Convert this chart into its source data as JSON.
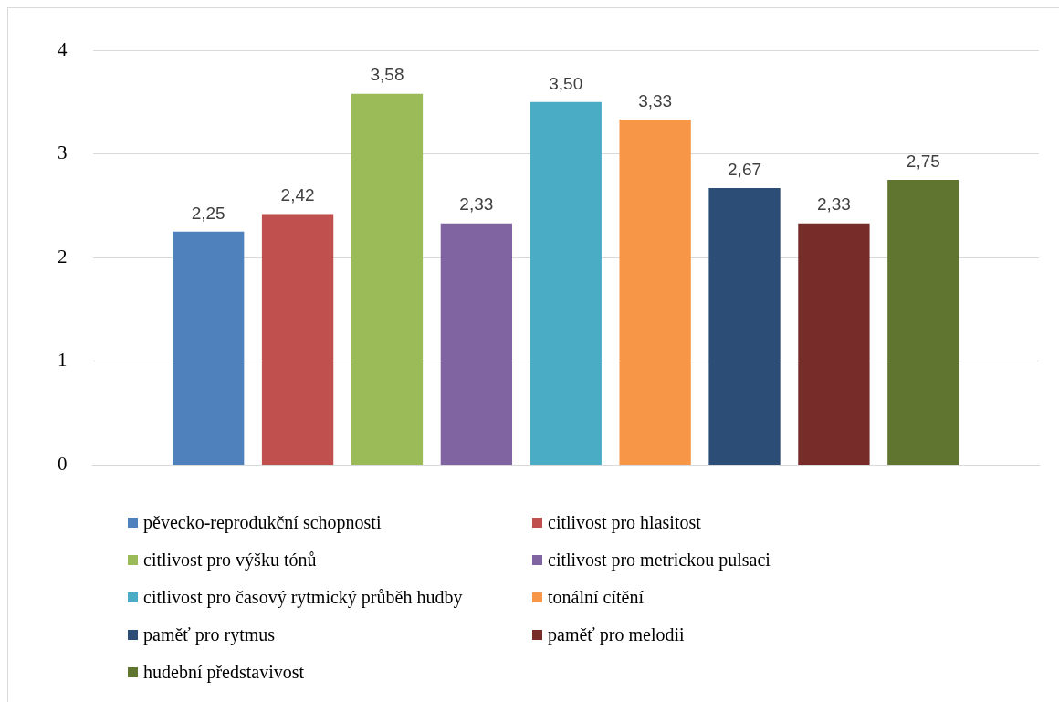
{
  "chart_data": {
    "type": "bar",
    "categories": [
      null
    ],
    "ylim": [
      0,
      4
    ],
    "yticks": [
      0,
      1,
      2,
      3,
      4
    ],
    "grid": "y",
    "legend": "bottom",
    "series": [
      {
        "name": "pěvecko-reprodukční schopnosti",
        "color": "#4f81bd",
        "values": [
          2.25
        ],
        "value_labels": [
          "2,25"
        ]
      },
      {
        "name": "citlivost pro hlasitost",
        "color": "#c0504d",
        "values": [
          2.42
        ],
        "value_labels": [
          "2,42"
        ]
      },
      {
        "name": "citlivost pro výšku tónů",
        "color": "#9bbb59",
        "values": [
          3.58
        ],
        "value_labels": [
          "3,58"
        ]
      },
      {
        "name": "citlivost pro metrickou pulsaci",
        "color": "#8064a2",
        "values": [
          2.33
        ],
        "value_labels": [
          "2,33"
        ]
      },
      {
        "name": "citlivost pro časový rytmický průběh hudby",
        "color": "#4bacc6",
        "values": [
          3.5
        ],
        "value_labels": [
          "3,50"
        ]
      },
      {
        "name": "tonální cítění",
        "color": "#f79646",
        "values": [
          3.33
        ],
        "value_labels": [
          "3,33"
        ]
      },
      {
        "name": "paměť pro rytmus",
        "color": "#2c4d75",
        "values": [
          2.67
        ],
        "value_labels": [
          "2,67"
        ]
      },
      {
        "name": "paměť pro melodii",
        "color": "#772c2a",
        "values": [
          2.33
        ],
        "value_labels": [
          "2,33"
        ]
      },
      {
        "name": "hudební představivost",
        "color": "#5f7530",
        "values": [
          2.75
        ],
        "value_labels": [
          "2,75"
        ]
      }
    ]
  }
}
